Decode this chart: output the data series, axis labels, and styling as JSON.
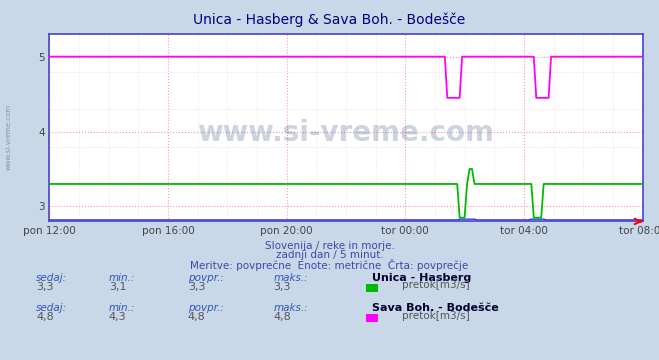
{
  "title": "Unica - Hasberg & Sava Boh. - Bodešče",
  "title_color": "#000080",
  "bg_color": "#c8d8e8",
  "plot_bg_color": "#ffffff",
  "grid_color_major": "#ff9999",
  "grid_color_minor": "#ffcccc",
  "border_color": "#4444cc",
  "xlim_hours": [
    0,
    20
  ],
  "ylim": [
    2.8,
    5.3
  ],
  "yticks": [
    3,
    4,
    5
  ],
  "xtick_labels": [
    "pon 12:00",
    "pon 16:00",
    "pon 20:00",
    "tor 00:00",
    "tor 04:00",
    "tor 08:00"
  ],
  "xtick_positions": [
    0,
    4,
    8,
    12,
    16,
    20
  ],
  "watermark": "www.si-vreme.com",
  "watermark_color": "#1a3a7a",
  "sub_text1": "Slovenija / reke in morje.",
  "sub_text2": "zadnji dan / 5 minut.",
  "sub_text3": "Meritve: povprečne  Enote: metrične  Črta: povprečje",
  "series1_color": "#00bb00",
  "series2_color": "#ff00ff",
  "series3_color": "#3333ff",
  "legend1_label": "pretok[m3/s]",
  "legend2_label": "pretok[m3/s]",
  "station1_name": "Unica - Hasberg",
  "station2_name": "Sava Boh. - Bodešče",
  "stats1": {
    "sedaj": "3,3",
    "min": "3,1",
    "povpr": "3,3",
    "maks": "3,3"
  },
  "stats2": {
    "sedaj": "4,8",
    "min": "4,3",
    "povpr": "4,8",
    "maks": "4,8"
  },
  "text_color": "#4444aa",
  "label_color": "#666666"
}
